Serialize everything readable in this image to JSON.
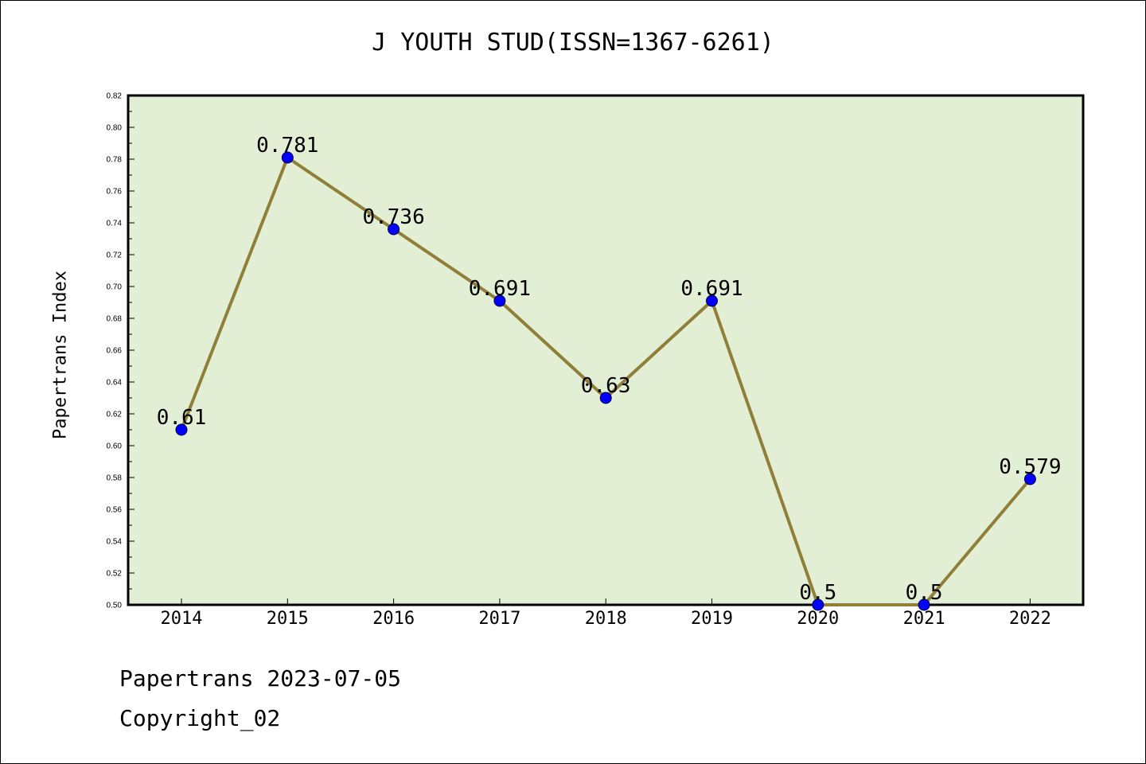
{
  "chart_data": {
    "type": "line",
    "title": "J YOUTH STUD(ISSN=1367-6261)",
    "xlabel": "",
    "ylabel": "Papertrans Index",
    "categories": [
      "2014",
      "2015",
      "2016",
      "2017",
      "2018",
      "2019",
      "2020",
      "2021",
      "2022"
    ],
    "values": [
      0.61,
      0.781,
      0.736,
      0.691,
      0.63,
      0.691,
      0.5,
      0.5,
      0.579
    ],
    "data_labels": [
      "0.61",
      "0.781",
      "0.736",
      "0.691",
      "0.63",
      "0.691",
      "0.5",
      "0.5",
      "0.579"
    ],
    "ylim": [
      0.5,
      0.82
    ],
    "yticks": [
      "0.50",
      "0.52",
      "0.54",
      "0.56",
      "0.58",
      "0.60",
      "0.62",
      "0.64",
      "0.66",
      "0.68",
      "0.70",
      "0.72",
      "0.74",
      "0.76",
      "0.78",
      "0.80",
      "0.82"
    ],
    "grid": false,
    "colors": {
      "plot_background": "#e2efd5",
      "line": "#8f7f38",
      "marker": "#0000ff"
    }
  },
  "footer": {
    "date": "Papertrans 2023-07-05",
    "copyright": "Copyright_02"
  }
}
